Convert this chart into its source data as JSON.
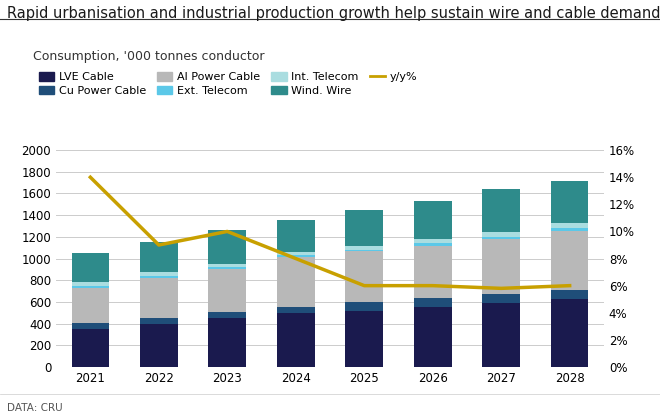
{
  "title": "Rapid urbanisation and industrial production growth help sustain wire and cable demand",
  "subtitle": "Consumption, '000 tonnes conductor",
  "footer": "DATA: CRU",
  "years": [
    2021,
    2022,
    2023,
    2024,
    2025,
    2026,
    2027,
    2028
  ],
  "categories": [
    "LVE Cable",
    "Cu Power Cable",
    "Al Power Cable",
    "Ext. Telecom",
    "Int. Telecom",
    "Wind. Wire"
  ],
  "colors": [
    "#1a1a4e",
    "#1f4e79",
    "#b8b8b8",
    "#5bc8e8",
    "#aadde0",
    "#2e8b8b"
  ],
  "bar_data": {
    "LVE Cable": [
      350,
      400,
      450,
      495,
      520,
      550,
      590,
      625
    ],
    "Cu Power Cable": [
      60,
      50,
      55,
      60,
      75,
      90,
      80,
      85
    ],
    "Al Power Cable": [
      320,
      370,
      400,
      460,
      470,
      480,
      510,
      545
    ],
    "Ext. Telecom": [
      15,
      20,
      15,
      15,
      18,
      20,
      22,
      25
    ],
    "Int. Telecom": [
      35,
      40,
      30,
      30,
      35,
      40,
      40,
      45
    ],
    "Wind. Wire": [
      270,
      270,
      310,
      295,
      330,
      350,
      400,
      390
    ]
  },
  "yy_line": [
    14.0,
    9.0,
    10.0,
    8.0,
    6.0,
    6.0,
    5.8,
    6.0
  ],
  "ylim_left": [
    0,
    2000
  ],
  "ylim_right": [
    0,
    16
  ],
  "yticks_left": [
    0,
    200,
    400,
    600,
    800,
    1000,
    1200,
    1400,
    1600,
    1800,
    2000
  ],
  "yticks_right": [
    0,
    2,
    4,
    6,
    8,
    10,
    12,
    14,
    16
  ],
  "line_color": "#c8a000",
  "background_color": "#ffffff",
  "title_fontsize": 10.5,
  "subtitle_fontsize": 9,
  "legend_fontsize": 8,
  "tick_fontsize": 8.5,
  "footer_fontsize": 7.5
}
